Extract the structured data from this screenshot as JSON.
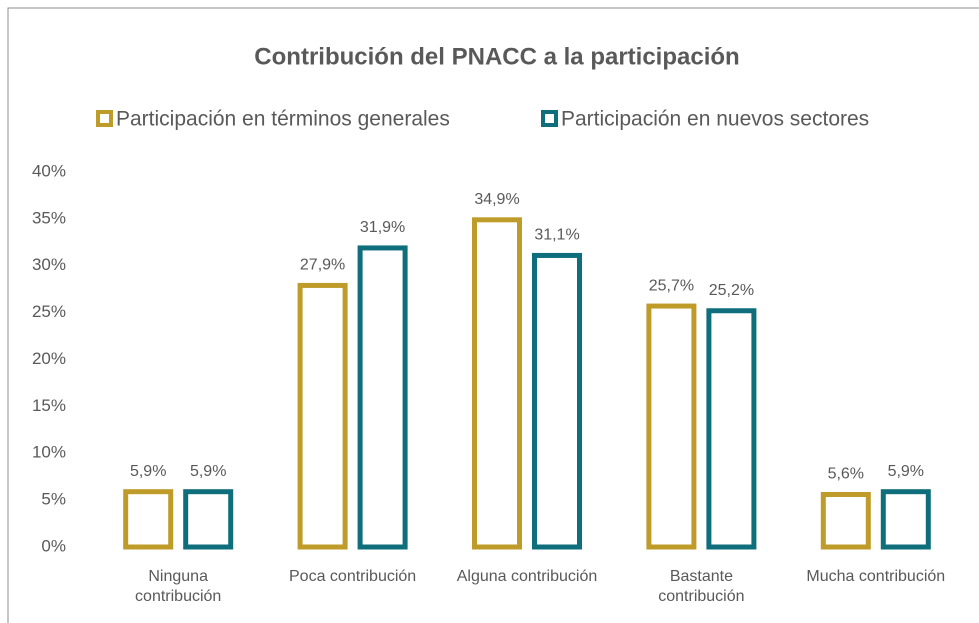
{
  "chart_data": {
    "type": "bar",
    "title": "Contribución del PNACC a la participación",
    "categories": [
      "Ninguna contribución",
      "Poca contribución",
      "Alguna contribución",
      "Bastante contribución",
      "Mucha contribución"
    ],
    "series": [
      {
        "name": "Participación en términos generales",
        "color": "#bf9b2a",
        "values": [
          5.9,
          27.9,
          34.9,
          25.7,
          5.6
        ],
        "value_labels": [
          "5,9%",
          "27,9%",
          "34,9%",
          "25,7%",
          "5,6%"
        ]
      },
      {
        "name": "Participación en nuevos sectores",
        "color": "#0f6e7c",
        "values": [
          5.9,
          31.9,
          31.1,
          25.2,
          5.9
        ],
        "value_labels": [
          "5,9%",
          "31,9%",
          "31,1%",
          "25,2%",
          "5,9%"
        ]
      }
    ],
    "ylim": [
      0,
      40
    ],
    "yticks": [
      {
        "value": 0,
        "label": "0%"
      },
      {
        "value": 5,
        "label": "5%"
      },
      {
        "value": 10,
        "label": "10%"
      },
      {
        "value": 15,
        "label": "15%"
      },
      {
        "value": 20,
        "label": "20%"
      },
      {
        "value": 25,
        "label": "25%"
      },
      {
        "value": 30,
        "label": "30%"
      },
      {
        "value": 35,
        "label": "35%"
      },
      {
        "value": 40,
        "label": "40%"
      }
    ],
    "grid": false
  }
}
